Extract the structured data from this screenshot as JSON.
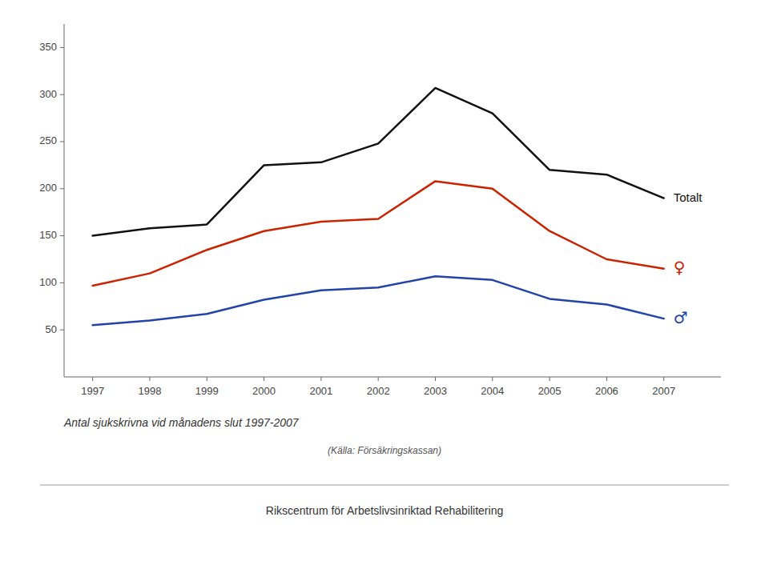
{
  "chart_data": {
    "type": "line",
    "xlabel": "Antal sjukskrivna vid månadens slut 1997-2007",
    "source": "(Källa: Försäkringskassan)",
    "footer": "Rikscentrum för Arbetslivsinriktad Rehabilitering",
    "x": [
      1997,
      1998,
      1999,
      2000,
      2001,
      2002,
      2003,
      2004,
      2005,
      2006,
      2007
    ],
    "series": [
      {
        "name": "Totalt",
        "color": "#111111",
        "values": [
          150,
          158,
          162,
          225,
          228,
          248,
          307,
          280,
          220,
          215,
          190
        ]
      },
      {
        "name": "♀",
        "color": "#cc2200",
        "values": [
          97,
          110,
          135,
          155,
          165,
          168,
          208,
          200,
          155,
          125,
          115
        ]
      },
      {
        "name": "♂",
        "color": "#2244aa",
        "values": [
          55,
          60,
          67,
          82,
          92,
          95,
          107,
          103,
          83,
          77,
          62
        ]
      }
    ],
    "xlim": [
      1996.5,
      2008.0
    ],
    "xticks": [
      1997,
      1998,
      1999,
      2000,
      2001,
      2002,
      2003,
      2004,
      2005,
      2006,
      2007
    ],
    "ylim": [
      0,
      375
    ],
    "yticks": [
      50,
      100,
      150,
      200,
      250,
      300,
      350
    ],
    "grid": false
  }
}
